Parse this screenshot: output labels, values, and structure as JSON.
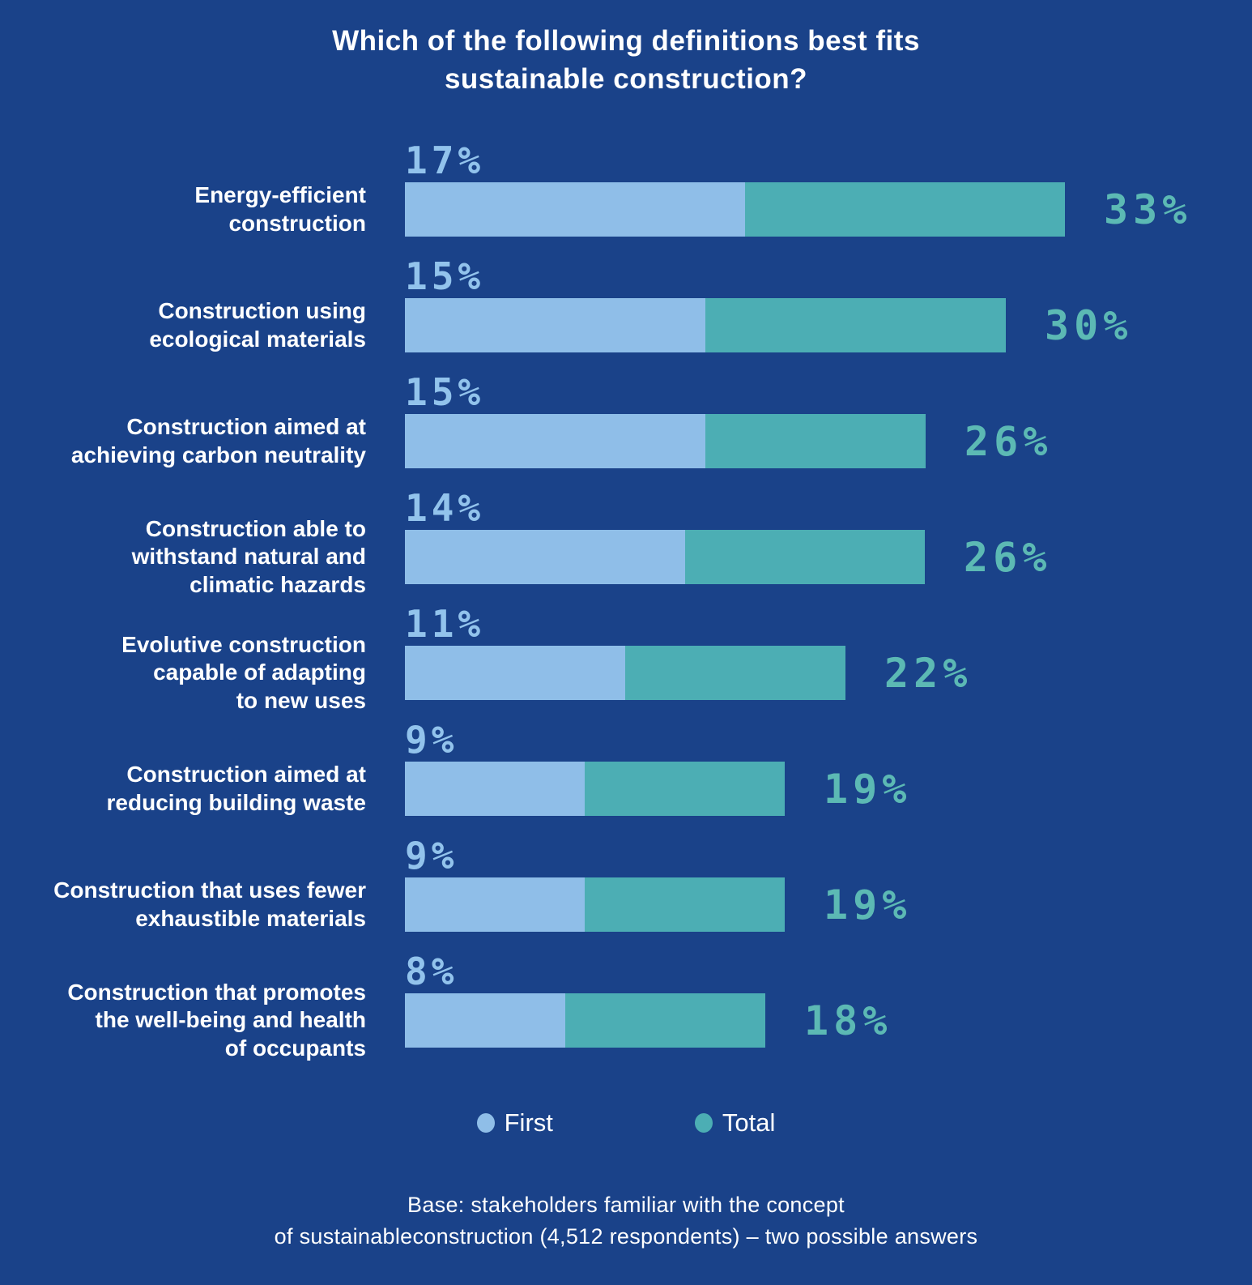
{
  "title": "Which of the following definitions best fits\nsustainable construction?",
  "colors": {
    "background": "#1A4289",
    "bar_first": "#8FBEE8",
    "bar_total": "#4CAEB4",
    "first_value_label": "#92C3EC",
    "total_value_label": "#5CB9B4",
    "text": "#FFFFFF"
  },
  "legend": [
    {
      "label": "First",
      "color": "#8FBEE8"
    },
    {
      "label": "Total",
      "color": "#4CAEB4"
    }
  ],
  "footnote": "Base: stakeholders familiar with the concept\nof sustainableconstruction (4,512 respondents) – two possible answers",
  "chart_data": {
    "type": "bar",
    "orientation": "horizontal",
    "stacked": true,
    "title": "Which of the following definitions best fits sustainable construction?",
    "unit": "%",
    "categories": [
      "Energy-efficient\nconstruction",
      "Construction using\necological materials",
      "Construction aimed at\nachieving carbon neutrality",
      "Construction able to\nwithstand natural and\nclimatic hazards",
      "Evolutive construction\ncapable of adapting\nto new uses",
      "Construction aimed at\nreducing building waste",
      "Construction that uses fewer\nexhaustible materials",
      "Construction that promotes\nthe well-being and health\nof occupants"
    ],
    "series": [
      {
        "name": "First",
        "color": "#8FBEE8",
        "values": [
          17,
          15,
          15,
          14,
          11,
          9,
          9,
          8
        ]
      },
      {
        "name": "Total",
        "color": "#4CAEB4",
        "values": [
          33,
          30,
          26,
          26,
          22,
          19,
          19,
          18
        ]
      }
    ],
    "xlim": [
      0,
      33
    ],
    "grid": false,
    "legend_position": "bottom",
    "value_label_placement": {
      "first": "above bar left, light blue",
      "total": "right of bar, teal"
    }
  }
}
